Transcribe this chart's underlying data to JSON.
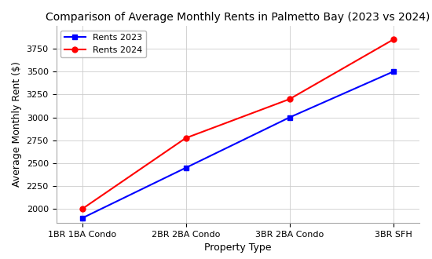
{
  "title": "Comparison of Average Monthly Rents in Palmetto Bay (2023 vs 2024)",
  "xlabel": "Property Type",
  "ylabel": "Average Monthly Rent ($)",
  "categories": [
    "1BR 1BA Condo",
    "2BR 2BA Condo",
    "3BR 2BA Condo",
    "3BR SFH"
  ],
  "rents_2023": [
    1900,
    2450,
    3000,
    3500
  ],
  "rents_2024": [
    2000,
    2775,
    3200,
    3850
  ],
  "color_2023": "#0000ff",
  "color_2024": "#ff0000",
  "marker_2023": "s",
  "marker_2024": "o",
  "linewidth": 1.5,
  "markersize": 5,
  "ylim": [
    1850,
    4000
  ],
  "yticks": [
    2000,
    2250,
    2500,
    2750,
    3000,
    3250,
    3500,
    3750
  ],
  "legend_labels": [
    "Rents 2023",
    "Rents 2024"
  ],
  "background_color": "#ffffff",
  "grid_color": "#cccccc",
  "title_fontsize": 10,
  "label_fontsize": 9,
  "tick_fontsize": 8
}
